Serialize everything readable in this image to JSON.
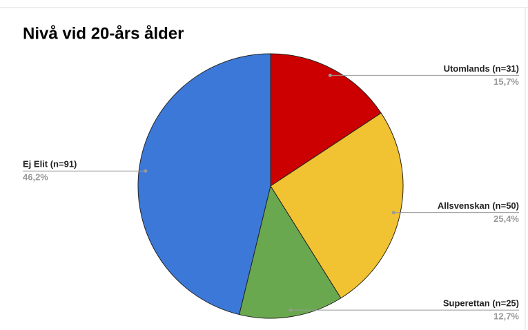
{
  "chart_data": {
    "type": "pie",
    "title": "Nivå vid 20-års ålder",
    "categories": [
      "Utomlands (n=31)",
      "Allsvenskan (n=50)",
      "Superettan (n=25)",
      "Ej Elit (n=91)"
    ],
    "values": [
      15.7,
      25.4,
      12.7,
      46.2
    ],
    "value_labels": [
      "15,7%",
      "25,4%",
      "12,7%",
      "46,2%"
    ],
    "colors": [
      "#cc0000",
      "#f1c232",
      "#6aa84f",
      "#3c78d8"
    ]
  }
}
